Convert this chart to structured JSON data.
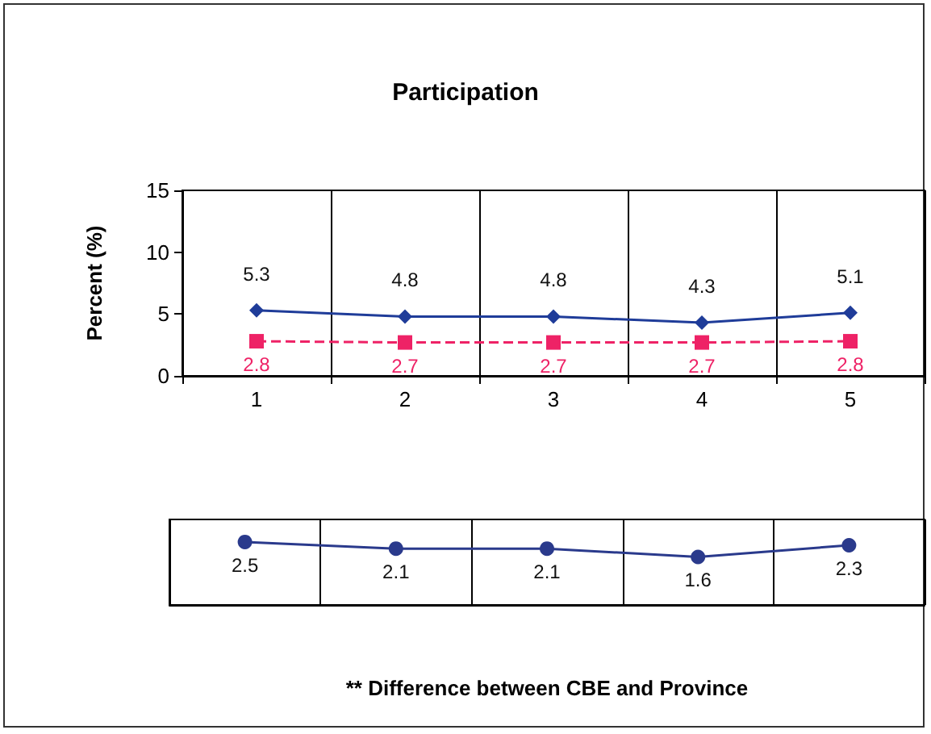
{
  "chart_data": [
    {
      "type": "line",
      "title": "Participation",
      "ylabel": "Percent (%)",
      "categories": [
        "1",
        "2",
        "3",
        "4",
        "5"
      ],
      "ylim": [
        0,
        15
      ],
      "yticks": [
        0,
        5,
        10,
        15
      ],
      "grid": "x",
      "data_labels": true,
      "series": [
        {
          "color": "#1f3c99",
          "marker": "diamond",
          "line_style": "solid",
          "values": [
            5.3,
            4.8,
            4.8,
            4.3,
            5.1
          ]
        },
        {
          "color": "#ee2266",
          "marker": "square",
          "line_style": "dashed",
          "values": [
            2.8,
            2.7,
            2.7,
            2.7,
            2.8
          ]
        }
      ]
    },
    {
      "type": "line",
      "xlabel": "** Difference between CBE and Province",
      "categories": [
        null,
        null,
        null,
        null,
        null
      ],
      "grid": "x",
      "data_labels": true,
      "series": [
        {
          "color": "#2a3a8c",
          "marker": "circle",
          "line_style": "solid",
          "values": [
            2.5,
            2.1,
            2.1,
            1.6,
            2.3
          ]
        }
      ]
    }
  ]
}
